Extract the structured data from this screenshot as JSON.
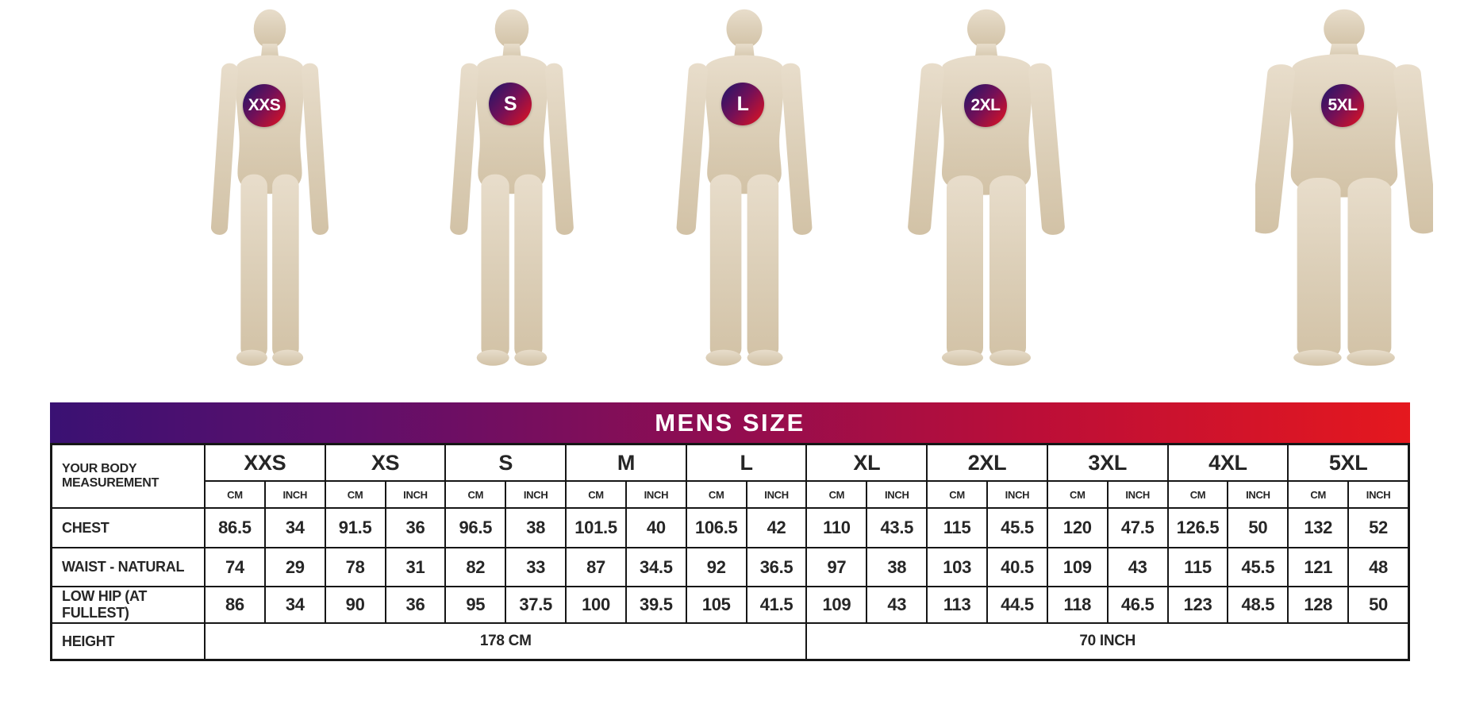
{
  "chart_data": {
    "type": "table",
    "title": "MENS SIZE",
    "corner_label": [
      "YOUR BODY",
      "MEASUREMENT"
    ],
    "sizes": [
      "XXS",
      "XS",
      "S",
      "M",
      "L",
      "XL",
      "2XL",
      "3XL",
      "4XL",
      "5XL"
    ],
    "unit_labels": [
      "CM",
      "INCH"
    ],
    "rows": [
      {
        "label": "CHEST",
        "values": [
          [
            "86.5",
            "34"
          ],
          [
            "91.5",
            "36"
          ],
          [
            "96.5",
            "38"
          ],
          [
            "101.5",
            "40"
          ],
          [
            "106.5",
            "42"
          ],
          [
            "110",
            "43.5"
          ],
          [
            "115",
            "45.5"
          ],
          [
            "120",
            "47.5"
          ],
          [
            "126.5",
            "50"
          ],
          [
            "132",
            "52"
          ]
        ]
      },
      {
        "label": "WAIST - NATURAL",
        "values": [
          [
            "74",
            "29"
          ],
          [
            "78",
            "31"
          ],
          [
            "82",
            "33"
          ],
          [
            "87",
            "34.5"
          ],
          [
            "92",
            "36.5"
          ],
          [
            "97",
            "38"
          ],
          [
            "103",
            "40.5"
          ],
          [
            "109",
            "43"
          ],
          [
            "115",
            "45.5"
          ],
          [
            "121",
            "48"
          ]
        ]
      },
      {
        "label": "LOW HIP (AT FULLEST)",
        "values": [
          [
            "86",
            "34"
          ],
          [
            "90",
            "36"
          ],
          [
            "95",
            "37.5"
          ],
          [
            "100",
            "39.5"
          ],
          [
            "105",
            "41.5"
          ],
          [
            "109",
            "43"
          ],
          [
            "113",
            "44.5"
          ],
          [
            "118",
            "46.5"
          ],
          [
            "123",
            "48.5"
          ],
          [
            "128",
            "50"
          ]
        ]
      }
    ],
    "height_row": {
      "label": "HEIGHT",
      "left_value": "178 CM",
      "right_value": "70 INCH"
    }
  },
  "figures": {
    "badges": [
      "XXS",
      "S",
      "L",
      "2XL",
      "5XL"
    ]
  },
  "colors": {
    "gradient_start": "#3a1173",
    "gradient_end": "#e5181e",
    "badge_start": "#2a1568",
    "badge_end": "#d41226",
    "mannequin_body": "#ddd0ba",
    "table_border": "#161616",
    "table_text": "#262626",
    "title_text": "#ffffff"
  }
}
